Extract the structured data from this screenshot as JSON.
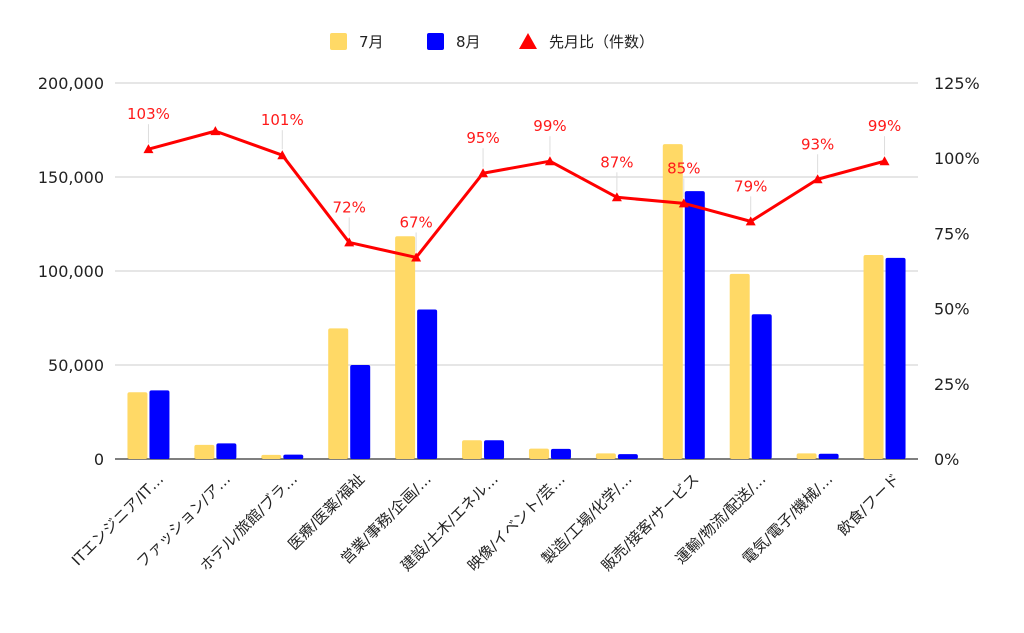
{
  "chart_data": {
    "type": "bar",
    "categories": [
      "ITエンジニア/IT…",
      "ファッション/ア…",
      "ホテル/旅館/ブラ…",
      "医療/医薬/福祉",
      "営業/事務/企画/…",
      "建設/土木/エネル…",
      "映像/イベント/芸…",
      "製造/工場/化学/…",
      "販売/接客/サービス",
      "運輸/物流/配送/…",
      "電気/電子/機械/…",
      "飲食/フード"
    ],
    "series": [
      {
        "name": "7月",
        "kind": "bar",
        "axis": "left",
        "color": "#ffd966",
        "values": [
          35500,
          7500,
          2200,
          69500,
          118500,
          10000,
          5500,
          3000,
          167500,
          98500,
          3000,
          108500
        ]
      },
      {
        "name": "8月",
        "kind": "bar",
        "axis": "left",
        "color": "#0000ff",
        "values": [
          36500,
          8300,
          2300,
          50000,
          79500,
          10000,
          5400,
          2600,
          142500,
          77000,
          2800,
          107000
        ]
      },
      {
        "name": "先月比（件数）",
        "kind": "line",
        "axis": "right",
        "color": "#ff0000",
        "values": [
          103,
          109,
          101,
          72,
          67,
          95,
          99,
          87,
          85,
          79,
          93,
          99
        ],
        "data_labels": [
          "103%",
          "",
          "101%",
          "72%",
          "67%",
          "95%",
          "99%",
          "87%",
          "85%",
          "79%",
          "93%",
          "99%"
        ]
      }
    ],
    "y_left": {
      "lim": [
        0,
        200000
      ],
      "ticks": [
        0,
        50000,
        100000,
        150000,
        200000
      ],
      "tick_labels": [
        "0",
        "50,000",
        "100,000",
        "150,000",
        "200,000"
      ]
    },
    "y_right": {
      "lim": [
        0,
        125
      ],
      "ticks": [
        0,
        25,
        50,
        75,
        100,
        125
      ],
      "tick_labels": [
        "0%",
        "25%",
        "50%",
        "75%",
        "100%",
        "125%"
      ]
    },
    "grid": true,
    "legend_position": "top-center",
    "title": "",
    "xlabel": "",
    "ylabel": ""
  }
}
